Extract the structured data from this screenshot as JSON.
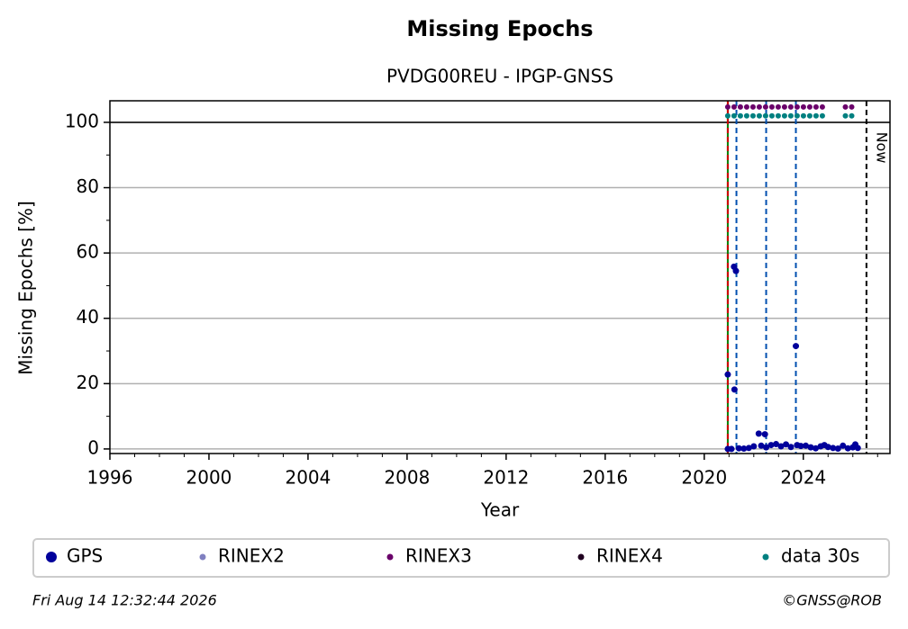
{
  "chart_data": {
    "type": "scatter",
    "title": "Missing Epochs",
    "subtitle": "PVDG00REU - IPGP-GNSS",
    "x_label": "Year",
    "y_label": "Missing Epochs [%]",
    "xlim": [
      1996,
      2027.5
    ],
    "ylim": [
      -1.4,
      106.6
    ],
    "xticks": [
      1996,
      2000,
      2004,
      2008,
      2012,
      2016,
      2020,
      2024
    ],
    "xminorticks": [
      1997,
      1998,
      1999,
      2001,
      2002,
      2003,
      2005,
      2006,
      2007,
      2009,
      2010,
      2011,
      2013,
      2014,
      2015,
      2017,
      2018,
      2019,
      2021,
      2022,
      2023,
      2025,
      2026,
      2027
    ],
    "yticks": [
      0,
      20,
      40,
      60,
      80,
      100
    ],
    "yminorticks": [
      10,
      30,
      50,
      70,
      90
    ],
    "grid": true,
    "hline": 100,
    "series": [
      {
        "name": "GPS",
        "color": "#00009b",
        "style": "dots",
        "x": [
          2020.95,
          2020.95,
          2021.1,
          2021.2,
          2021.28,
          2021.22,
          2021.4,
          2021.6,
          2021.8,
          2022.0,
          2022.2,
          2022.3,
          2022.45,
          2022.5,
          2022.7,
          2022.9,
          2023.1,
          2023.3,
          2023.5,
          2023.7,
          2023.75,
          2023.9,
          2024.1,
          2024.3,
          2024.5,
          2024.7,
          2024.85,
          2025.0,
          2025.2,
          2025.4,
          2025.6,
          2025.8,
          2026.0,
          2026.1,
          2026.2
        ],
        "values": [
          22.8,
          0,
          0,
          55.8,
          54.5,
          18.2,
          0.2,
          0.1,
          0.3,
          0.8,
          4.7,
          1,
          4.5,
          0.5,
          1.2,
          1.5,
          0.8,
          1.4,
          0.6,
          31.5,
          1.2,
          0.9,
          1.0,
          0.5,
          0.2,
          0.8,
          1.2,
          0.6,
          0.3,
          0.1,
          1.0,
          0.2,
          0.5,
          1.4,
          0.3
        ]
      },
      {
        "name": "RINEX2",
        "color": "#8080c0",
        "style": "dots",
        "x": [],
        "values": []
      },
      {
        "name": "RINEX3",
        "color": "#6a006a",
        "style": "line",
        "x": [
          2020.95,
          2025.0,
          null,
          2025.7,
          2026.2
        ],
        "values": [
          104.7,
          104.7,
          null,
          104.7,
          104.7
        ]
      },
      {
        "name": "RINEX4",
        "color": "#200020",
        "style": "dots",
        "x": [],
        "values": []
      },
      {
        "name": "data 30s",
        "color": "#008080",
        "style": "line",
        "x": [
          2020.95,
          2025.0,
          null,
          2025.7,
          2026.2
        ],
        "values": [
          102,
          102,
          null,
          102,
          102
        ]
      }
    ],
    "vlines": [
      {
        "x": 2020.95,
        "color": "#008000",
        "style": "solid"
      },
      {
        "x": 2020.95,
        "color": "#d00000",
        "style": "dashed"
      },
      {
        "x": 2021.3,
        "color": "#0050b0",
        "style": "dashed"
      },
      {
        "x": 2022.5,
        "color": "#0050b0",
        "style": "dashed"
      },
      {
        "x": 2023.7,
        "color": "#0050b0",
        "style": "dashed"
      },
      {
        "x": 2026.55,
        "color": "#000000",
        "style": "dashed"
      }
    ],
    "now_label": {
      "text": "Now",
      "x": 2026.55
    },
    "footer_left": "Fri Aug 14 12:32:44 2026",
    "footer_right": "©GNSS@ROB"
  }
}
